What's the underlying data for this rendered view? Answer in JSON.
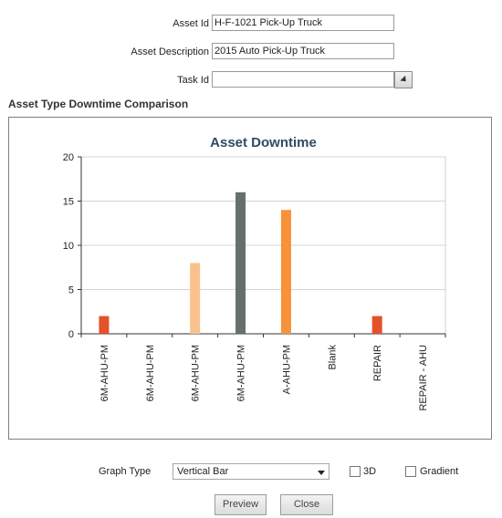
{
  "form": {
    "asset_id_label": "Asset Id",
    "asset_id_value": "H-F-1021 Pick-Up Truck",
    "asset_desc_label": "Asset Description",
    "asset_desc_value": "2015 Auto Pick-Up Truck",
    "task_id_label": "Task Id",
    "task_id_value": ""
  },
  "section_title": "Asset Type Downtime Comparison",
  "chart_data": {
    "type": "bar",
    "title": "Asset Downtime",
    "categories": [
      "6M-AHU-PM",
      "6M-AHU-PM",
      "6M-AHU-PM",
      "6M-AHU-PM",
      "A-AHU-PM",
      "Blank",
      "REPAIR",
      "REPAIR - AHU"
    ],
    "values": [
      2,
      0,
      8,
      16,
      14,
      0,
      2,
      0
    ],
    "colors": [
      "#e4522a",
      "#e4522a",
      "#f9c28d",
      "#65706b",
      "#f7923a",
      "#e4522a",
      "#e4522a",
      "#e4522a"
    ],
    "ylim": [
      0,
      20
    ],
    "yticks": [
      0,
      5,
      10,
      15,
      20
    ],
    "xlabel": "",
    "ylabel": "",
    "grid": true
  },
  "controls": {
    "graph_type_label": "Graph Type",
    "graph_type_value": "Vertical Bar",
    "three_d_label": "3D",
    "gradient_label": "Gradient",
    "preview_label": "Preview",
    "close_label": "Close"
  }
}
